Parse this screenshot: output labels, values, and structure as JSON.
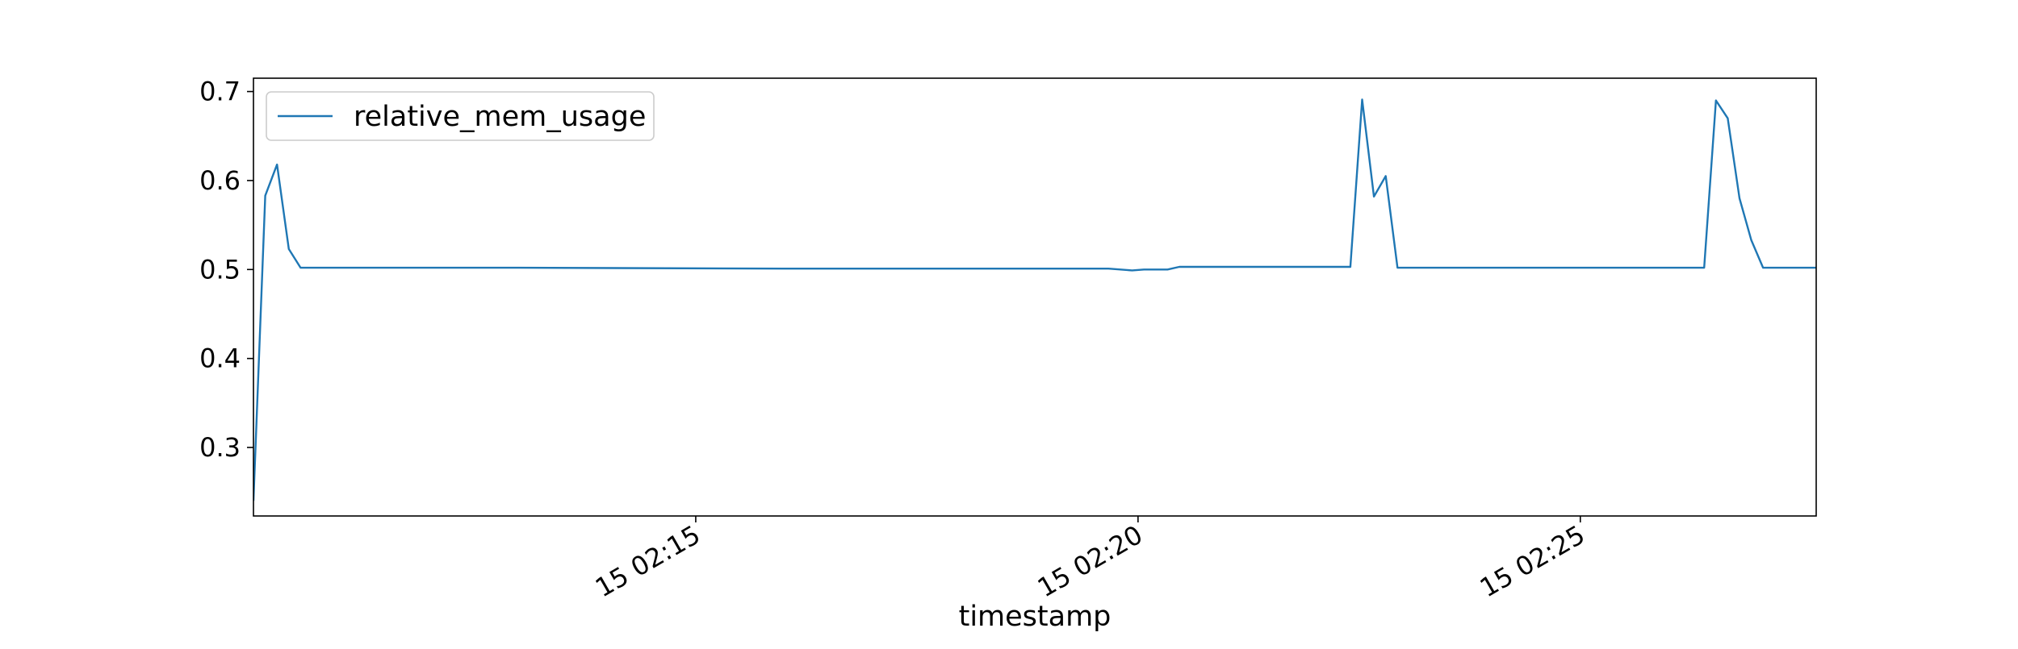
{
  "chart_data": {
    "type": "line",
    "title": "",
    "xlabel": "timestamp",
    "ylabel": "",
    "grid": false,
    "legend_position": "top-left",
    "x_domain": [
      "15 02:10",
      "15 02:27:40"
    ],
    "xlim_label": [
      "",
      ""
    ],
    "ylim": [
      0.223,
      0.715
    ],
    "x_ticks": [
      {
        "value": "15 02:15",
        "label": "15 02:15"
      },
      {
        "value": "15 02:20",
        "label": "15 02:20"
      },
      {
        "value": "15 02:25",
        "label": "15 02:25"
      }
    ],
    "y_ticks": [
      {
        "value": 0.3,
        "label": "0.3"
      },
      {
        "value": 0.4,
        "label": "0.4"
      },
      {
        "value": 0.5,
        "label": "0.5"
      },
      {
        "value": 0.6,
        "label": "0.6"
      },
      {
        "value": 0.7,
        "label": "0.7"
      }
    ],
    "series": [
      {
        "name": "relative_mem_usage",
        "color": "#1f77b4",
        "points": [
          {
            "x": "15 02:10:00",
            "y": 0.24
          },
          {
            "x": "15 02:10:08",
            "y": 0.583
          },
          {
            "x": "15 02:10:16",
            "y": 0.618
          },
          {
            "x": "15 02:10:24",
            "y": 0.523
          },
          {
            "x": "15 02:10:32",
            "y": 0.502
          },
          {
            "x": "15 02:13:00",
            "y": 0.502
          },
          {
            "x": "15 02:16:00",
            "y": 0.501
          },
          {
            "x": "15 02:19:00",
            "y": 0.501
          },
          {
            "x": "15 02:19:40",
            "y": 0.501
          },
          {
            "x": "15 02:19:56",
            "y": 0.499
          },
          {
            "x": "15 02:20:04",
            "y": 0.5
          },
          {
            "x": "15 02:20:20",
            "y": 0.5
          },
          {
            "x": "15 02:20:28",
            "y": 0.503
          },
          {
            "x": "15 02:22:24",
            "y": 0.503
          },
          {
            "x": "15 02:22:32",
            "y": 0.691
          },
          {
            "x": "15 02:22:40",
            "y": 0.582
          },
          {
            "x": "15 02:22:48",
            "y": 0.605
          },
          {
            "x": "15 02:22:56",
            "y": 0.502
          },
          {
            "x": "15 02:26:24",
            "y": 0.502
          },
          {
            "x": "15 02:26:32",
            "y": 0.69
          },
          {
            "x": "15 02:26:40",
            "y": 0.67
          },
          {
            "x": "15 02:26:48",
            "y": 0.58
          },
          {
            "x": "15 02:26:56",
            "y": 0.533
          },
          {
            "x": "15 02:27:04",
            "y": 0.502
          },
          {
            "x": "15 02:27:40",
            "y": 0.502
          }
        ]
      }
    ]
  }
}
